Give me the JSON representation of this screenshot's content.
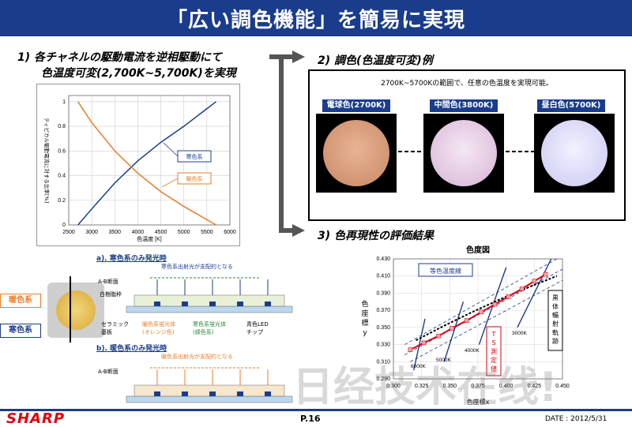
{
  "title": "「広い調色機能」を簡易に実現",
  "left_heading": {
    "line1": "1)  各チャネルの駆動電流を逆相駆動にて",
    "line2": "色温度可変(2,700K~5,700K)を実現"
  },
  "right_heading1": "2)  調色(色温度可変)例",
  "right_heading2": "3)  色再現性の評価結果",
  "color_example": {
    "caption": "2700K~5700Kの範囲で、任意の色温度を実現可能。",
    "swatches": [
      {
        "label": "電球色(2700K)",
        "color": "#d39b78"
      },
      {
        "label": "中間色(3800K)",
        "color": "#e7cfe5"
      },
      {
        "label": "昼白色(5700K)",
        "color": "#dcdcf6"
      }
    ]
  },
  "current_chart": {
    "ylabel": "ティピカル駆動電流に対する比率[%]",
    "xlabel": "色温度 [K]",
    "cold_label": "寒色系",
    "warm_label": "暖色系",
    "cold_color": "#1c3c8c",
    "warm_color": "#e87e2a"
  },
  "chromaticity": {
    "title": "色度図",
    "xlabel": "色座標x",
    "ylabel_chars": [
      "色",
      "座",
      "標",
      "y"
    ],
    "isotherm_label": "等色温度線",
    "blackbody_label": [
      "黒",
      "体",
      "輻",
      "射",
      "軌",
      "跡"
    ],
    "ts_label": [
      "T",
      "S",
      "測",
      "定",
      "値"
    ],
    "temps": [
      "6000K",
      "5000K",
      "4000K",
      "3000K"
    ],
    "ts_color": "#e1000f"
  },
  "diagram": {
    "a_title": "a). 寒色系のみ発光時",
    "b_title": "b). 暖色系のみ発光時",
    "cold_label": "寒色系",
    "warm_label": "暖色系",
    "ab_section": "A-B断面",
    "a_note": "寒色系出射光が支配的となる",
    "b_note": "暖色系出射光が支配的となる",
    "resin": "白樹脂枠",
    "ceramic": "セラミック\n基板",
    "warm_phosphor": "暖色系蛍光体\n(オレンジ色)",
    "cold_phosphor": "寒色系蛍光体\n(緑色系)",
    "led": "青色LED\nチップ"
  },
  "chart_data": [
    {
      "type": "line",
      "title": "",
      "xlabel": "色温度 [K]",
      "ylabel": "ティピカル駆動電流に対する比率[%]",
      "x": [
        2700,
        3000,
        3500,
        4000,
        4500,
        5000,
        5700
      ],
      "xlim": [
        2500,
        6000
      ],
      "ylim": [
        0,
        1.05
      ],
      "x_ticks": [
        2500,
        3000,
        3500,
        4000,
        4500,
        5000,
        5500,
        6000
      ],
      "y_ticks": [
        0,
        0.2,
        0.4,
        0.6,
        0.8,
        1
      ],
      "series": [
        {
          "name": "寒色系",
          "values": [
            0,
            0.13,
            0.34,
            0.52,
            0.67,
            0.8,
            1.0
          ]
        },
        {
          "name": "暖色系",
          "values": [
            1.0,
            0.83,
            0.6,
            0.42,
            0.27,
            0.15,
            0
          ]
        }
      ],
      "grid": true
    },
    {
      "type": "scatter",
      "title": "色度図",
      "xlabel": "色座標x",
      "ylabel": "色座標y",
      "xlim": [
        0.3,
        0.45
      ],
      "ylim": [
        0.29,
        0.43
      ],
      "x_ticks": [
        "0.300",
        "0.325",
        "0.350",
        "0.375",
        "0.400",
        "0.425",
        "0.450"
      ],
      "y_ticks": [
        "0.290",
        "0.310",
        "0.330",
        "0.350",
        "0.370",
        "0.390",
        "0.410",
        "0.430"
      ],
      "series": [
        {
          "name": "TS測定値",
          "x": [
            0.315,
            0.327,
            0.34,
            0.352,
            0.365,
            0.378,
            0.39,
            0.402,
            0.414,
            0.425,
            0.435
          ],
          "y": [
            0.324,
            0.332,
            0.34,
            0.349,
            0.358,
            0.368,
            0.377,
            0.386,
            0.395,
            0.404,
            0.412
          ]
        },
        {
          "name": "黒体輻射軌跡",
          "x": [
            0.32,
            0.345,
            0.37,
            0.395,
            0.42,
            0.445
          ],
          "y": [
            0.335,
            0.352,
            0.368,
            0.383,
            0.397,
            0.41
          ]
        }
      ],
      "grid": true
    }
  ],
  "footer": {
    "logo": "SHARP",
    "page": "P.16",
    "date": "DATE : 2012/5/31",
    "watermark": "日经技术在线!"
  }
}
